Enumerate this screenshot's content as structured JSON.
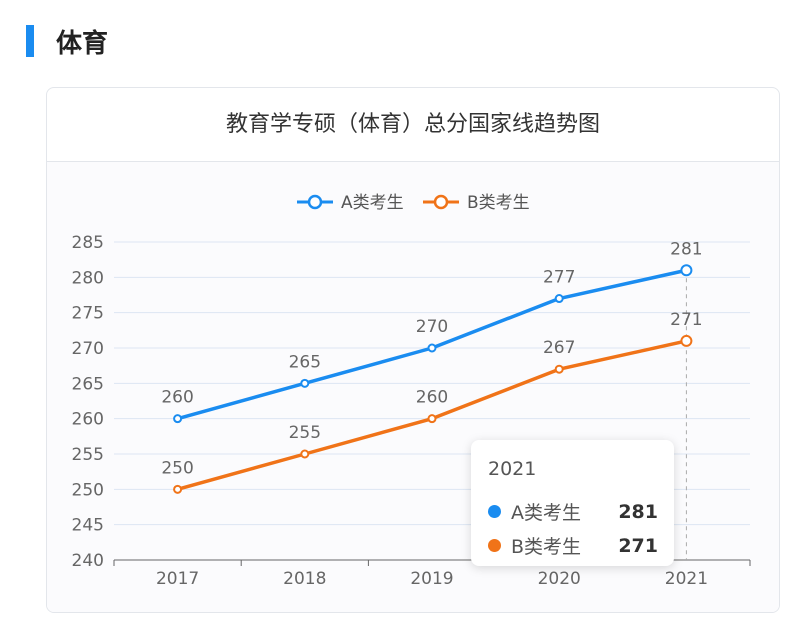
{
  "section": {
    "title": "体育",
    "accent": "#1a8cf0"
  },
  "card": {
    "title": "教育学专硕（体育）总分国家线趋势图"
  },
  "chart_data": {
    "type": "line",
    "categories": [
      "2017",
      "2018",
      "2019",
      "2020",
      "2021"
    ],
    "series": [
      {
        "name": "A类考生",
        "color": "#1a8cf0",
        "values": [
          260,
          265,
          270,
          277,
          281
        ]
      },
      {
        "name": "B类考生",
        "color": "#f07318",
        "values": [
          250,
          255,
          260,
          267,
          271
        ]
      }
    ],
    "ylim": [
      240,
      285
    ],
    "yticks": [
      240,
      245,
      250,
      255,
      260,
      265,
      270,
      275,
      280,
      285
    ],
    "legend": "top-center",
    "grid": true,
    "data_labels": true
  },
  "tooltip": {
    "title": "2021",
    "rows": [
      {
        "name": "A类考生",
        "value": "281",
        "color": "#1a8cf0"
      },
      {
        "name": "B类考生",
        "value": "271",
        "color": "#f07318"
      }
    ]
  }
}
